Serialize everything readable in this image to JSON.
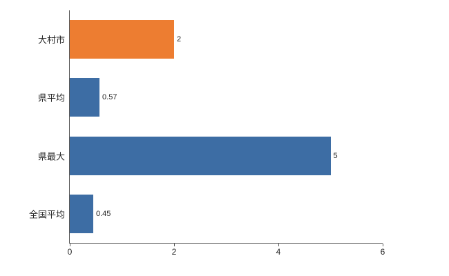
{
  "chart_data": {
    "type": "bar",
    "orientation": "horizontal",
    "title": "",
    "xlabel": "",
    "ylabel": "",
    "categories": [
      "大村市",
      "県平均",
      "県最大",
      "全国平均"
    ],
    "values": [
      2,
      0.57,
      5,
      0.45
    ],
    "value_labels": [
      "2",
      "0.57",
      "5",
      "0.45"
    ],
    "bar_colors": [
      "#ED7D31",
      "#3D6DA4",
      "#3D6DA4",
      "#3D6DA4"
    ],
    "xlim": [
      0,
      6
    ],
    "x_ticks": [
      0,
      2,
      4,
      6
    ],
    "x_tick_labels": [
      "0",
      "2",
      "4",
      "6"
    ],
    "grid": "off",
    "legend": "none",
    "colors": {
      "accent_orange": "#ED7D31",
      "accent_blue": "#3D6DA4",
      "axis": "#595959",
      "text": "#262626",
      "background": "#ffffff"
    }
  }
}
